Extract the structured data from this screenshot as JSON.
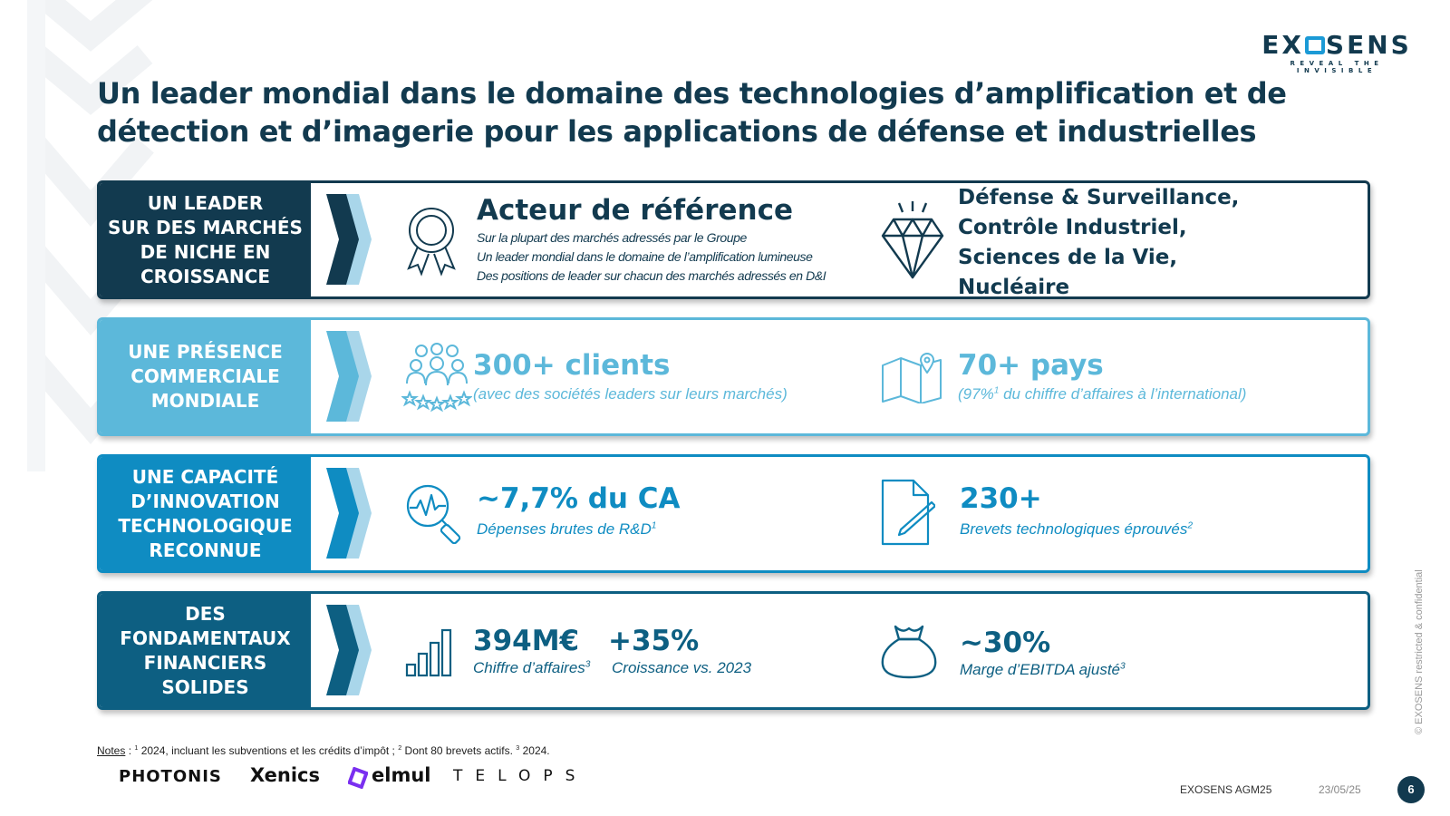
{
  "logo": {
    "wordmark_left": "EX",
    "wordmark_right": "SENS",
    "tagline": "REVEAL THE INVISIBLE"
  },
  "title": {
    "line1": "Un leader mondial dans le domaine des technologies d’amplification et de",
    "line2": "détection et d’imagerie pour les applications de défense et industrielles"
  },
  "rows": [
    {
      "label": "UN LEADER\nSUR DES MARCHÉS\nDE NICHE EN\nCROISSANCE",
      "color": "#123a4f",
      "left": {
        "icon": "award-ribbon-icon",
        "heading": "Acteur de référence",
        "lines": [
          "Sur la plupart des marchés adressés par le Groupe",
          "Un leader mondial dans le domaine de l’amplification lumineuse",
          "Des positions de leader sur chacun des marchés adressés en D&I"
        ]
      },
      "right": {
        "icon": "diamond-icon",
        "lines": [
          "Défense & Surveillance,",
          "Contrôle Industriel,",
          "Sciences de la Vie,",
          "Nucléaire"
        ]
      }
    },
    {
      "label": "UNE PRÉSENCE\nCOMMERCIALE\nMONDIALE",
      "color": "#5cb8da",
      "left": {
        "icon": "clients-group-icon",
        "value": "300+ clients",
        "caption": "(avec des sociétés leaders sur leurs marchés)"
      },
      "right": {
        "icon": "map-pin-icon",
        "value": "70+ pays",
        "caption_pre": "(97%",
        "caption_sup": "1",
        "caption_post": " du chiffre d’affaires à l’international)"
      }
    },
    {
      "label": "UNE CAPACITÉ\nD’INNOVATION\nTECHNOLOGIQUE\nRECONNUE",
      "color": "#0f8cc2",
      "left": {
        "icon": "magnifier-pulse-icon",
        "value": "~7,7% du CA",
        "caption": "Dépenses brutes de R&D",
        "caption_sup": "1"
      },
      "right": {
        "icon": "document-pen-icon",
        "value": "230+",
        "caption": "Brevets technologiques éprouvés",
        "caption_sup": "2"
      }
    },
    {
      "label": "DES\nFONDAMENTAUX\nFINANCIERS\nSOLIDES",
      "color": "#0d5f82",
      "left": {
        "icon": "bar-chart-icon",
        "value": "394M€",
        "caption": "Chiffre d’affaires",
        "caption_sup": "3",
        "value2": "+35%",
        "caption2": "Croissance vs. 2023"
      },
      "right": {
        "icon": "money-bag-icon",
        "value": "~30%",
        "caption": "Marge d’EBITDA ajusté",
        "caption_sup": "3"
      }
    }
  ],
  "notes": {
    "label": "Notes",
    "text_a": " : ",
    "sup1": "1",
    "text_b": " 2024, incluant les subventions et les crédits d’impôt ; ",
    "sup2": "2",
    "text_c": " Dont 80 brevets actifs. ",
    "sup3": "3",
    "text_d": " 2024."
  },
  "brands": [
    "PHOTONIS",
    "Xenics",
    "elmul",
    "TELOPS"
  ],
  "footer": {
    "event": "EXOSENS AGM25",
    "date": "23/05/25",
    "page": "6",
    "confidential": "© EXOSENS restricted & confidential"
  },
  "colors": {
    "navy": "#123a4f",
    "light_blue": "#5cb8da",
    "mid_blue": "#0f8cc2",
    "teal": "#0d5f82",
    "accent": "#1b9ad6"
  }
}
